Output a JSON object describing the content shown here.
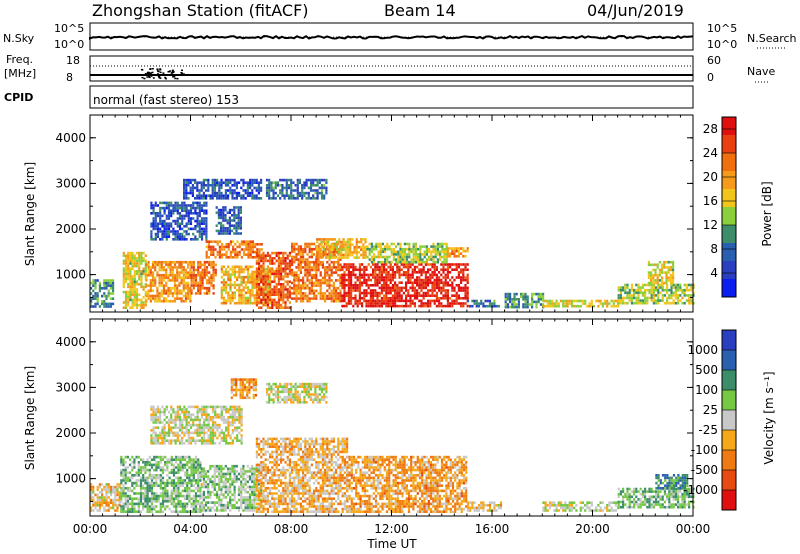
{
  "header": {
    "station": "Zhongshan Station (fitACF)",
    "beam": "Beam 14",
    "date": "04/Jun/2019"
  },
  "summary": {
    "nsky_label": "N.Sky",
    "nsky_ticks": [
      "10^5",
      "10^0"
    ],
    "nsearch_label": "N.Search",
    "nsearch_ticks": [
      "10^5",
      "10^0"
    ],
    "freq_label": "Freq.",
    "freq_unit": "[MHz]",
    "freq_ticks": [
      "18",
      "8"
    ],
    "nave_label": "Nave",
    "nave_ticks": [
      "60",
      "0"
    ],
    "cpid_label": "CPID",
    "cpid_text": "normal (fast stereo) 153"
  },
  "colors": {
    "power_scale": [
      "#0b1ef0",
      "#2a3fc0",
      "#2a5fb0",
      "#3c8e6a",
      "#8ccf3c",
      "#f2c51a",
      "#f59a1a",
      "#f07010",
      "#e84010",
      "#e01010"
    ],
    "velocity_scale": [
      "#2a3fc0",
      "#2a60b0",
      "#3c8e6a",
      "#74c843",
      "#c8c8c8",
      "#f5a81a",
      "#f07a12",
      "#e84b10",
      "#e01010"
    ],
    "ground_scatter": "#b4b4b4"
  },
  "chart_data": [
    {
      "type": "heatmap",
      "name": "power",
      "ylabel": "Slant Range [km]",
      "xlabel": "Time UT",
      "ylim": [
        180,
        4500
      ],
      "xlim": [
        0,
        24
      ],
      "yticks": [
        "1000",
        "2000",
        "3000",
        "4000"
      ],
      "xticks": [
        "00:00",
        "04:00",
        "08:00",
        "12:00",
        "16:00",
        "20:00",
        "00:00"
      ],
      "colorbar": {
        "label": "Power [dB]",
        "range": [
          0,
          30
        ],
        "ticks": [
          "4",
          "8",
          "12",
          "16",
          "20",
          "24",
          "28"
        ]
      },
      "regions": [
        {
          "t": [
            0.0,
            0.9
          ],
          "r": [
            300,
            900
          ],
          "v": 10
        },
        {
          "t": [
            1.3,
            2.2
          ],
          "r": [
            300,
            1500
          ],
          "v": 16
        },
        {
          "t": [
            2.2,
            4.0
          ],
          "r": [
            400,
            1300
          ],
          "v": 20
        },
        {
          "t": [
            2.4,
            4.6
          ],
          "r": [
            1800,
            2600
          ],
          "v": 6
        },
        {
          "t": [
            4.0,
            5.0
          ],
          "r": [
            600,
            1300
          ],
          "v": 22
        },
        {
          "t": [
            5.0,
            6.0
          ],
          "r": [
            1900,
            2500
          ],
          "v": 7
        },
        {
          "t": [
            3.7,
            6.8
          ],
          "r": [
            2700,
            3100
          ],
          "v": 6
        },
        {
          "t": [
            4.6,
            6.8
          ],
          "r": [
            1400,
            1750
          ],
          "v": 22
        },
        {
          "t": [
            5.2,
            7.2
          ],
          "r": [
            400,
            1200
          ],
          "v": 18
        },
        {
          "t": [
            6.6,
            8.0
          ],
          "r": [
            300,
            1500
          ],
          "v": 24
        },
        {
          "t": [
            7.0,
            9.4
          ],
          "r": [
            2700,
            3100
          ],
          "v": 8
        },
        {
          "t": [
            8.0,
            10.0
          ],
          "r": [
            400,
            1700
          ],
          "v": 22
        },
        {
          "t": [
            9.0,
            11.0
          ],
          "r": [
            1400,
            1800
          ],
          "v": 18
        },
        {
          "t": [
            10.0,
            15.0
          ],
          "r": [
            300,
            1250
          ],
          "v": 28
        },
        {
          "t": [
            11.0,
            14.2
          ],
          "r": [
            1300,
            1700
          ],
          "v": 14
        },
        {
          "t": [
            14.2,
            15.0
          ],
          "r": [
            1400,
            1600
          ],
          "v": 20
        },
        {
          "t": [
            15.0,
            16.4
          ],
          "r": [
            300,
            450
          ],
          "v": 8
        },
        {
          "t": [
            16.5,
            18.0
          ],
          "r": [
            300,
            600
          ],
          "v": 10
        },
        {
          "t": [
            18.0,
            21.0
          ],
          "r": [
            300,
            450
          ],
          "v": 16
        },
        {
          "t": [
            21.0,
            24.0
          ],
          "r": [
            350,
            800
          ],
          "v": 14
        },
        {
          "t": [
            22.2,
            23.2
          ],
          "r": [
            800,
            1300
          ],
          "v": 16
        }
      ]
    },
    {
      "type": "heatmap",
      "name": "velocity",
      "ylabel": "Slant Range [km]",
      "xlabel": "Time UT",
      "ylim": [
        180,
        4500
      ],
      "xlim": [
        0,
        24
      ],
      "yticks": [
        "1000",
        "2000",
        "3000",
        "4000"
      ],
      "xticks": [
        "00:00",
        "04:00",
        "08:00",
        "12:00",
        "16:00",
        "20:00",
        "00:00"
      ],
      "colorbar": {
        "label": "Velocity [m s⁻¹]",
        "range": [
          -1200,
          1200
        ],
        "ticks": [
          "1000",
          "500",
          "100",
          "25",
          "-25",
          "-100",
          "-500",
          "-1000"
        ]
      },
      "regions": [
        {
          "t": [
            0.0,
            1.2
          ],
          "r": [
            300,
            900
          ],
          "v": -150
        },
        {
          "t": [
            1.2,
            4.4
          ],
          "r": [
            300,
            1500
          ],
          "v": 300
        },
        {
          "t": [
            2.4,
            6.0
          ],
          "r": [
            1800,
            2600
          ],
          "v": 0
        },
        {
          "t": [
            4.4,
            6.8
          ],
          "r": [
            300,
            1300
          ],
          "v": 200
        },
        {
          "t": [
            5.6,
            6.6
          ],
          "r": [
            2800,
            3200
          ],
          "v": -400
        },
        {
          "t": [
            6.6,
            10.2
          ],
          "r": [
            300,
            1900
          ],
          "v": -250
        },
        {
          "t": [
            7.0,
            9.4
          ],
          "r": [
            2700,
            3100
          ],
          "v": 0
        },
        {
          "t": [
            10.2,
            15.0
          ],
          "r": [
            300,
            1500
          ],
          "v": -350
        },
        {
          "t": [
            15.0,
            16.4
          ],
          "r": [
            300,
            500
          ],
          "v": -150
        },
        {
          "t": [
            18.0,
            21.0
          ],
          "r": [
            300,
            500
          ],
          "v": 60
        },
        {
          "t": [
            21.0,
            24.0
          ],
          "r": [
            350,
            800
          ],
          "v": 300
        },
        {
          "t": [
            22.5,
            23.8
          ],
          "r": [
            800,
            1100
          ],
          "v": 600
        }
      ]
    }
  ]
}
